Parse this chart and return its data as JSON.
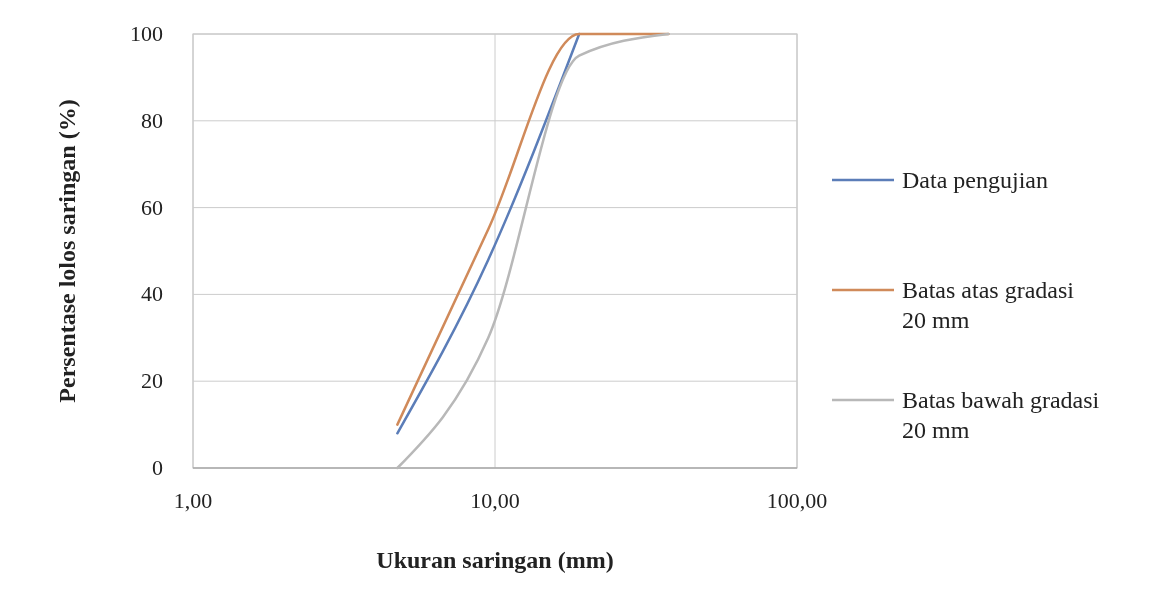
{
  "chart_data": {
    "type": "line",
    "xlabel": "Ukuran saringan (mm)",
    "ylabel": "Persentase lolos saringan (%)",
    "log": "x",
    "xlim": [
      1,
      100
    ],
    "xticks": [
      {
        "value": 1,
        "label": "1,00"
      },
      {
        "value": 10,
        "label": "10,00"
      },
      {
        "value": 100,
        "label": "100,00"
      }
    ],
    "ylim": [
      0,
      100
    ],
    "yticks": [
      0,
      20,
      40,
      60,
      80,
      100
    ],
    "grid": true,
    "legend": "right",
    "marker": "none",
    "line_style": "solid",
    "series": [
      {
        "name": "Data pengujian",
        "color": "#5b7db8",
        "x": [
          4.75,
          9.5,
          19
        ],
        "values": [
          8,
          48,
          100
        ]
      },
      {
        "name": "Batas atas gradasi 20 mm",
        "color": "#d08a5a",
        "x": [
          4.75,
          9.5,
          19,
          37.5
        ],
        "values": [
          10,
          55,
          100,
          100
        ]
      },
      {
        "name": "Batas bawah gradasi 20 mm",
        "color": "#b8b8b8",
        "x": [
          4.75,
          9.5,
          19,
          37.5
        ],
        "values": [
          0,
          30,
          95,
          100
        ]
      }
    ]
  }
}
